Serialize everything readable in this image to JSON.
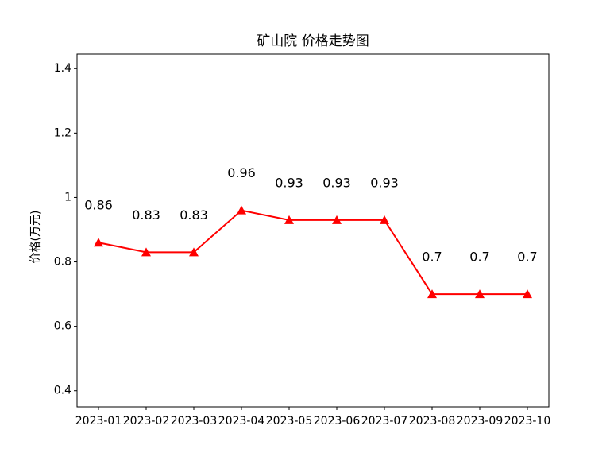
{
  "chart_data": {
    "type": "line",
    "title": "矿山院 价格走势图",
    "y_label": "价格(万元)",
    "categories": [
      "2023-01",
      "2023-02",
      "2023-03",
      "2023-04",
      "2023-05",
      "2023-06",
      "2023-07",
      "2023-08",
      "2023-09",
      "2023-10"
    ],
    "values": [
      0.86,
      0.83,
      0.83,
      0.96,
      0.93,
      0.93,
      0.93,
      0.7,
      0.7,
      0.7
    ],
    "color": "#ff0000",
    "marker": "triangle",
    "ylim": [
      0.35,
      1.445
    ],
    "yticks": [
      0.4,
      0.6,
      0.8,
      1.0,
      1.2,
      1.4
    ],
    "grid": false
  }
}
